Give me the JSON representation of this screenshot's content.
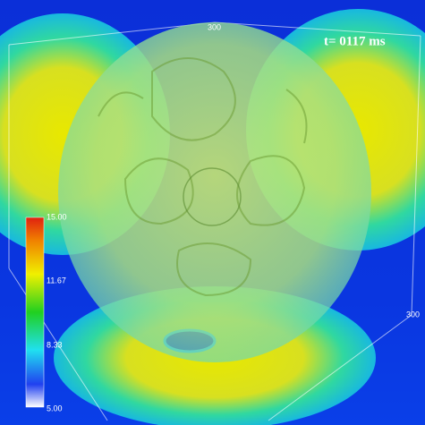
{
  "time_label": "t= 0117 ms",
  "axis_labels": {
    "top": "300",
    "right": "300"
  },
  "colorbar": {
    "ticks": [
      "15.00",
      "11.67",
      "8.33",
      "5.00"
    ]
  }
}
